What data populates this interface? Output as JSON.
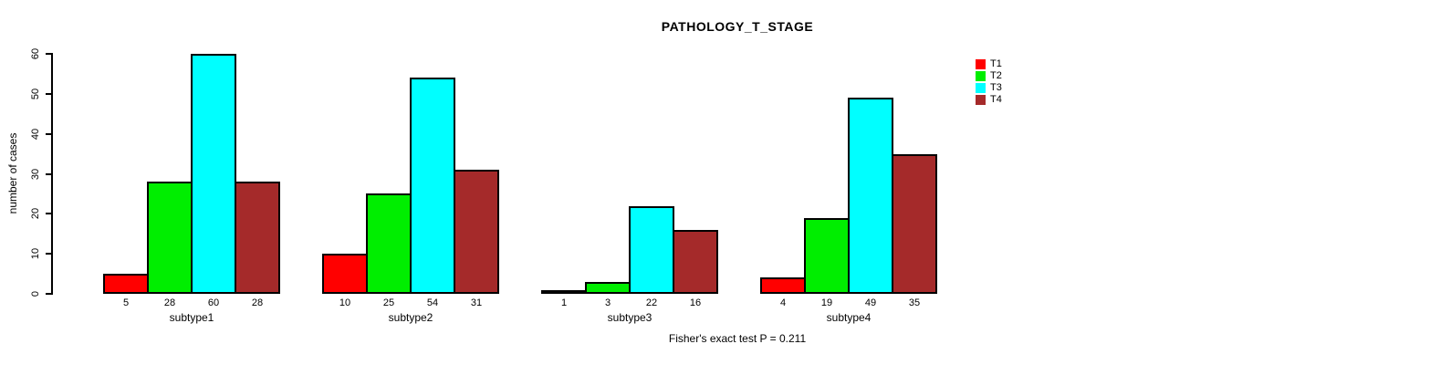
{
  "chart_data": {
    "type": "bar",
    "title": "PATHOLOGY_T_STAGE",
    "ylabel": "number of cases",
    "xlabel": "",
    "ylim": [
      0,
      60
    ],
    "yticks": [
      0,
      10,
      20,
      30,
      40,
      50,
      60
    ],
    "grid": false,
    "legend_position": "right-top",
    "categories": [
      "subtype1",
      "subtype2",
      "subtype3",
      "subtype4"
    ],
    "series": [
      {
        "name": "T1",
        "color": "#FF0000",
        "values": [
          5,
          10,
          1,
          4
        ]
      },
      {
        "name": "T2",
        "color": "#00EE00",
        "values": [
          28,
          25,
          3,
          19
        ]
      },
      {
        "name": "T3",
        "color": "#00FFFF",
        "values": [
          60,
          54,
          22,
          49
        ]
      },
      {
        "name": "T4",
        "color": "#A52A2A",
        "values": [
          28,
          31,
          16,
          35
        ]
      }
    ],
    "bar_value_labels": {
      "subtype1": [
        5,
        28,
        60,
        28
      ],
      "subtype2": [
        10,
        25,
        54,
        31
      ],
      "subtype3": [
        1,
        3,
        22,
        16
      ],
      "subtype4": [
        4,
        19,
        49,
        35
      ]
    },
    "annotation": "Fisher's exact test P = 0.211"
  }
}
